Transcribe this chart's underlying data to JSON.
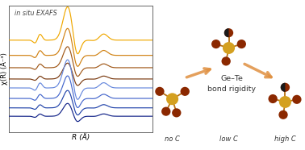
{
  "background_color": "#ffffff",
  "plot_bg": "#ffffff",
  "exafs_label": "in situ EXAFS",
  "xlabel": "R (Å)",
  "ylabel": "χ(R) (Å⁻³)",
  "bond_label": "Ge–Te\nbond rigidity",
  "no_c_label": "no C",
  "low_c_label": "low C",
  "high_c_label": "high C",
  "orange_colors": [
    "#F0A800",
    "#D08010",
    "#A05818",
    "#7A3A10"
  ],
  "blue_colors": [
    "#6688DD",
    "#4466CC",
    "#2244AA",
    "#112288"
  ],
  "ge_color": "#D4A020",
  "te_color": "#8B2800",
  "c_color": "#111111",
  "bond_color": "#B87010",
  "arrow_color": "#E09040"
}
